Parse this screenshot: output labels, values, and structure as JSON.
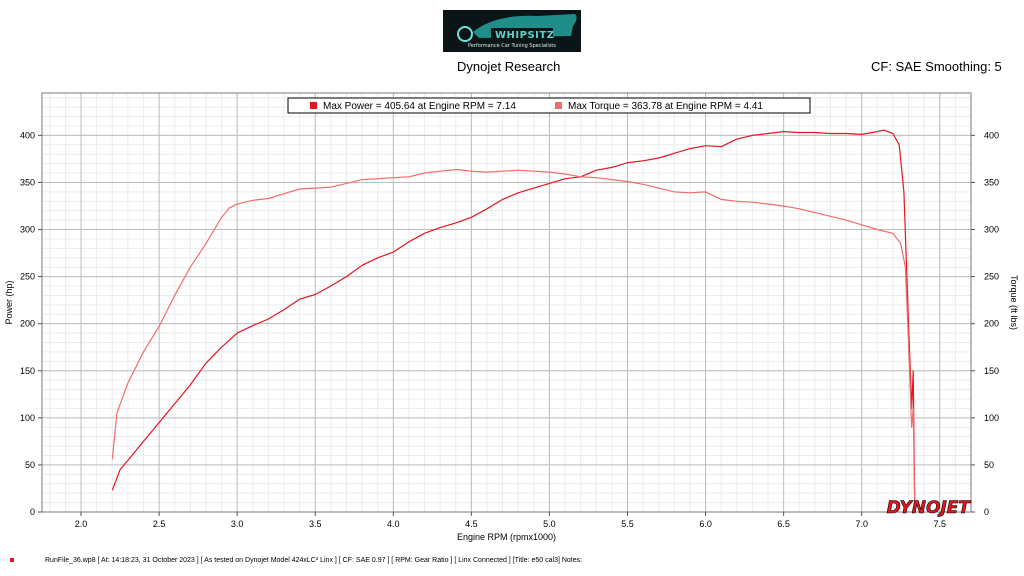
{
  "header": {
    "logo_text": "WHIPSITZ",
    "logo_tagline": "Performance Car Tuning Specialists",
    "title": "Dynojet Research",
    "cf_smoothing": "CF: SAE Smoothing: 5"
  },
  "footer": {
    "text": "RunFile_36.wp8 [ At: 14:18:23, 31 October 2023 ] [ As tested on Dynojet Model 424xLC² Linx ] [ CF: SAE 0.97 ] [ RPM: Gear Ratio ] [ Linx Connected ] [Title: e50 cal3]  Notes:"
  },
  "watermark": "DYNOJET",
  "colors": {
    "power": "#e8141e",
    "torque": "#f26c6c",
    "watermark": "#e8141e"
  },
  "chart_data": {
    "type": "line",
    "xlabel": "Engine RPM (rpmx1000)",
    "ylabel": "Power (hp)",
    "y2label": "Torque (ft lbs)",
    "xlim": [
      1.75,
      7.7
    ],
    "ylim": [
      0,
      445
    ],
    "x_ticks": [
      "2.0",
      "2.5",
      "3.0",
      "3.5",
      "4.0",
      "4.5",
      "5.0",
      "5.5",
      "6.0",
      "6.5",
      "7.0",
      "7.5"
    ],
    "y_ticks": [
      "0",
      "50",
      "100",
      "150",
      "200",
      "250",
      "300",
      "350",
      "400"
    ],
    "grid": true,
    "legend": "top",
    "series": [
      {
        "name": "Max Power = 405.64 at Engine RPM = 7.14",
        "color": "#e8141e",
        "x": [
          2.2,
          2.25,
          2.3,
          2.4,
          2.5,
          2.6,
          2.7,
          2.8,
          2.9,
          3.0,
          3.1,
          3.2,
          3.3,
          3.4,
          3.5,
          3.6,
          3.7,
          3.8,
          3.9,
          4.0,
          4.1,
          4.2,
          4.3,
          4.4,
          4.5,
          4.6,
          4.7,
          4.8,
          4.9,
          5.0,
          5.1,
          5.2,
          5.3,
          5.4,
          5.5,
          5.6,
          5.7,
          5.8,
          5.9,
          6.0,
          6.1,
          6.2,
          6.3,
          6.4,
          6.5,
          6.6,
          6.7,
          6.8,
          6.9,
          7.0,
          7.1,
          7.14,
          7.2,
          7.24,
          7.27,
          7.3,
          7.32,
          7.33,
          7.34
        ],
        "values": [
          23,
          45,
          55,
          75,
          95,
          115,
          135,
          158,
          175,
          190,
          198,
          205,
          215,
          226,
          231,
          240,
          250,
          262,
          270,
          276,
          287,
          296,
          302,
          307,
          313,
          322,
          332,
          339,
          344,
          349,
          354,
          356,
          363,
          366,
          371,
          373,
          376,
          381,
          386,
          389,
          388,
          396,
          400,
          402,
          404,
          403,
          403,
          402,
          402,
          401,
          404,
          405.6,
          402,
          390,
          340,
          200,
          110,
          150,
          0
        ]
      },
      {
        "name": "Max Torque = 363.78 at Engine RPM = 4.41",
        "color": "#f26c6c",
        "x": [
          2.2,
          2.23,
          2.3,
          2.4,
          2.5,
          2.6,
          2.7,
          2.8,
          2.9,
          2.95,
          3.0,
          3.1,
          3.2,
          3.3,
          3.4,
          3.5,
          3.6,
          3.7,
          3.8,
          3.9,
          4.0,
          4.1,
          4.2,
          4.3,
          4.41,
          4.5,
          4.6,
          4.7,
          4.8,
          4.9,
          5.0,
          5.1,
          5.2,
          5.3,
          5.4,
          5.5,
          5.6,
          5.7,
          5.8,
          5.9,
          6.0,
          6.1,
          6.2,
          6.3,
          6.4,
          6.5,
          6.6,
          6.7,
          6.8,
          6.9,
          7.0,
          7.1,
          7.2,
          7.25,
          7.28,
          7.3,
          7.32,
          7.33,
          7.34
        ],
        "values": [
          56,
          105,
          137,
          170,
          197,
          230,
          260,
          285,
          313,
          323,
          327,
          331,
          333,
          338,
          343,
          344,
          345,
          349,
          353,
          354,
          355,
          356,
          360,
          362,
          363.8,
          362,
          361,
          362,
          363,
          362,
          361,
          359,
          356,
          355,
          353,
          351,
          348,
          344,
          340,
          339,
          340,
          332,
          330,
          329,
          327,
          325,
          322,
          318,
          314,
          310,
          305,
          300,
          296,
          285,
          260,
          180,
          90,
          110,
          0
        ]
      }
    ]
  }
}
